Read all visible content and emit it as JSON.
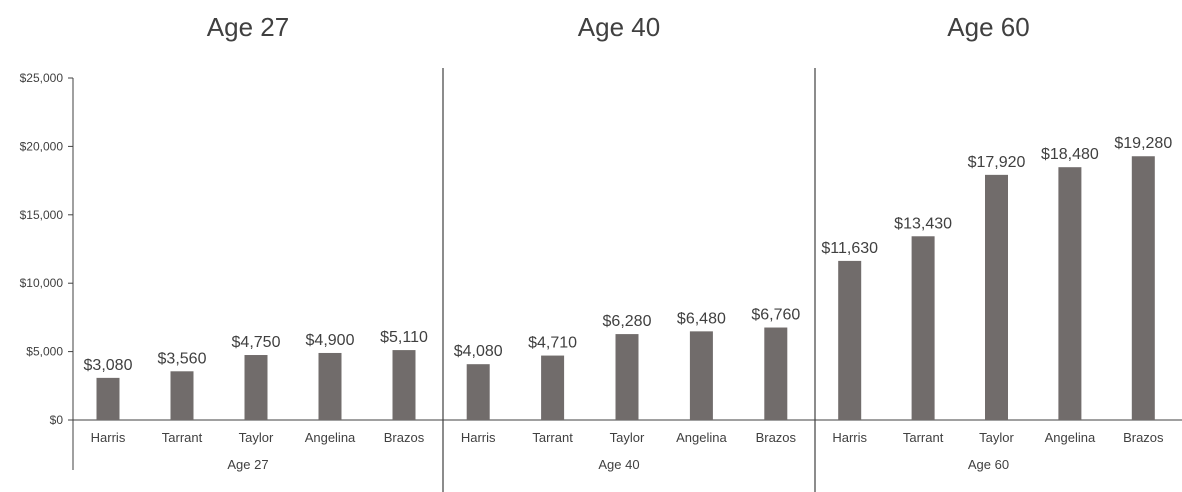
{
  "chart_data": {
    "type": "bar",
    "colors": {
      "bar": "#716c6b",
      "text": "#404040",
      "axis": "#404040"
    },
    "ylim": [
      0,
      25000
    ],
    "y_ticks": [
      0,
      5000,
      10000,
      15000,
      20000,
      25000
    ],
    "y_tick_labels": [
      "$0",
      "$5,000",
      "$10,000",
      "$15,000",
      "$20,000",
      "$25,000"
    ],
    "grid": false,
    "legend": "none",
    "panels": [
      {
        "title": "Age 27",
        "group_label": "Age 27",
        "categories": [
          "Harris",
          "Tarrant",
          "Taylor",
          "Angelina",
          "Brazos"
        ],
        "values": [
          3080,
          3560,
          4750,
          4900,
          5110
        ],
        "data_labels": [
          "$3,080",
          "$3,560",
          "$4,750",
          "$4,900",
          "$5,110"
        ]
      },
      {
        "title": "Age 40",
        "group_label": "Age 40",
        "categories": [
          "Harris",
          "Tarrant",
          "Taylor",
          "Angelina",
          "Brazos"
        ],
        "values": [
          4080,
          4710,
          6280,
          6480,
          6760
        ],
        "data_labels": [
          "$4,080",
          "$4,710",
          "$6,280",
          "$6,480",
          "$6,760"
        ]
      },
      {
        "title": "Age 60",
        "group_label": "Age 60",
        "categories": [
          "Harris",
          "Tarrant",
          "Taylor",
          "Angelina",
          "Brazos"
        ],
        "values": [
          11630,
          13430,
          17920,
          18480,
          19280
        ],
        "data_labels": [
          "$11,630",
          "$13,430",
          "$17,920",
          "$18,480",
          "$19,280"
        ]
      }
    ]
  }
}
